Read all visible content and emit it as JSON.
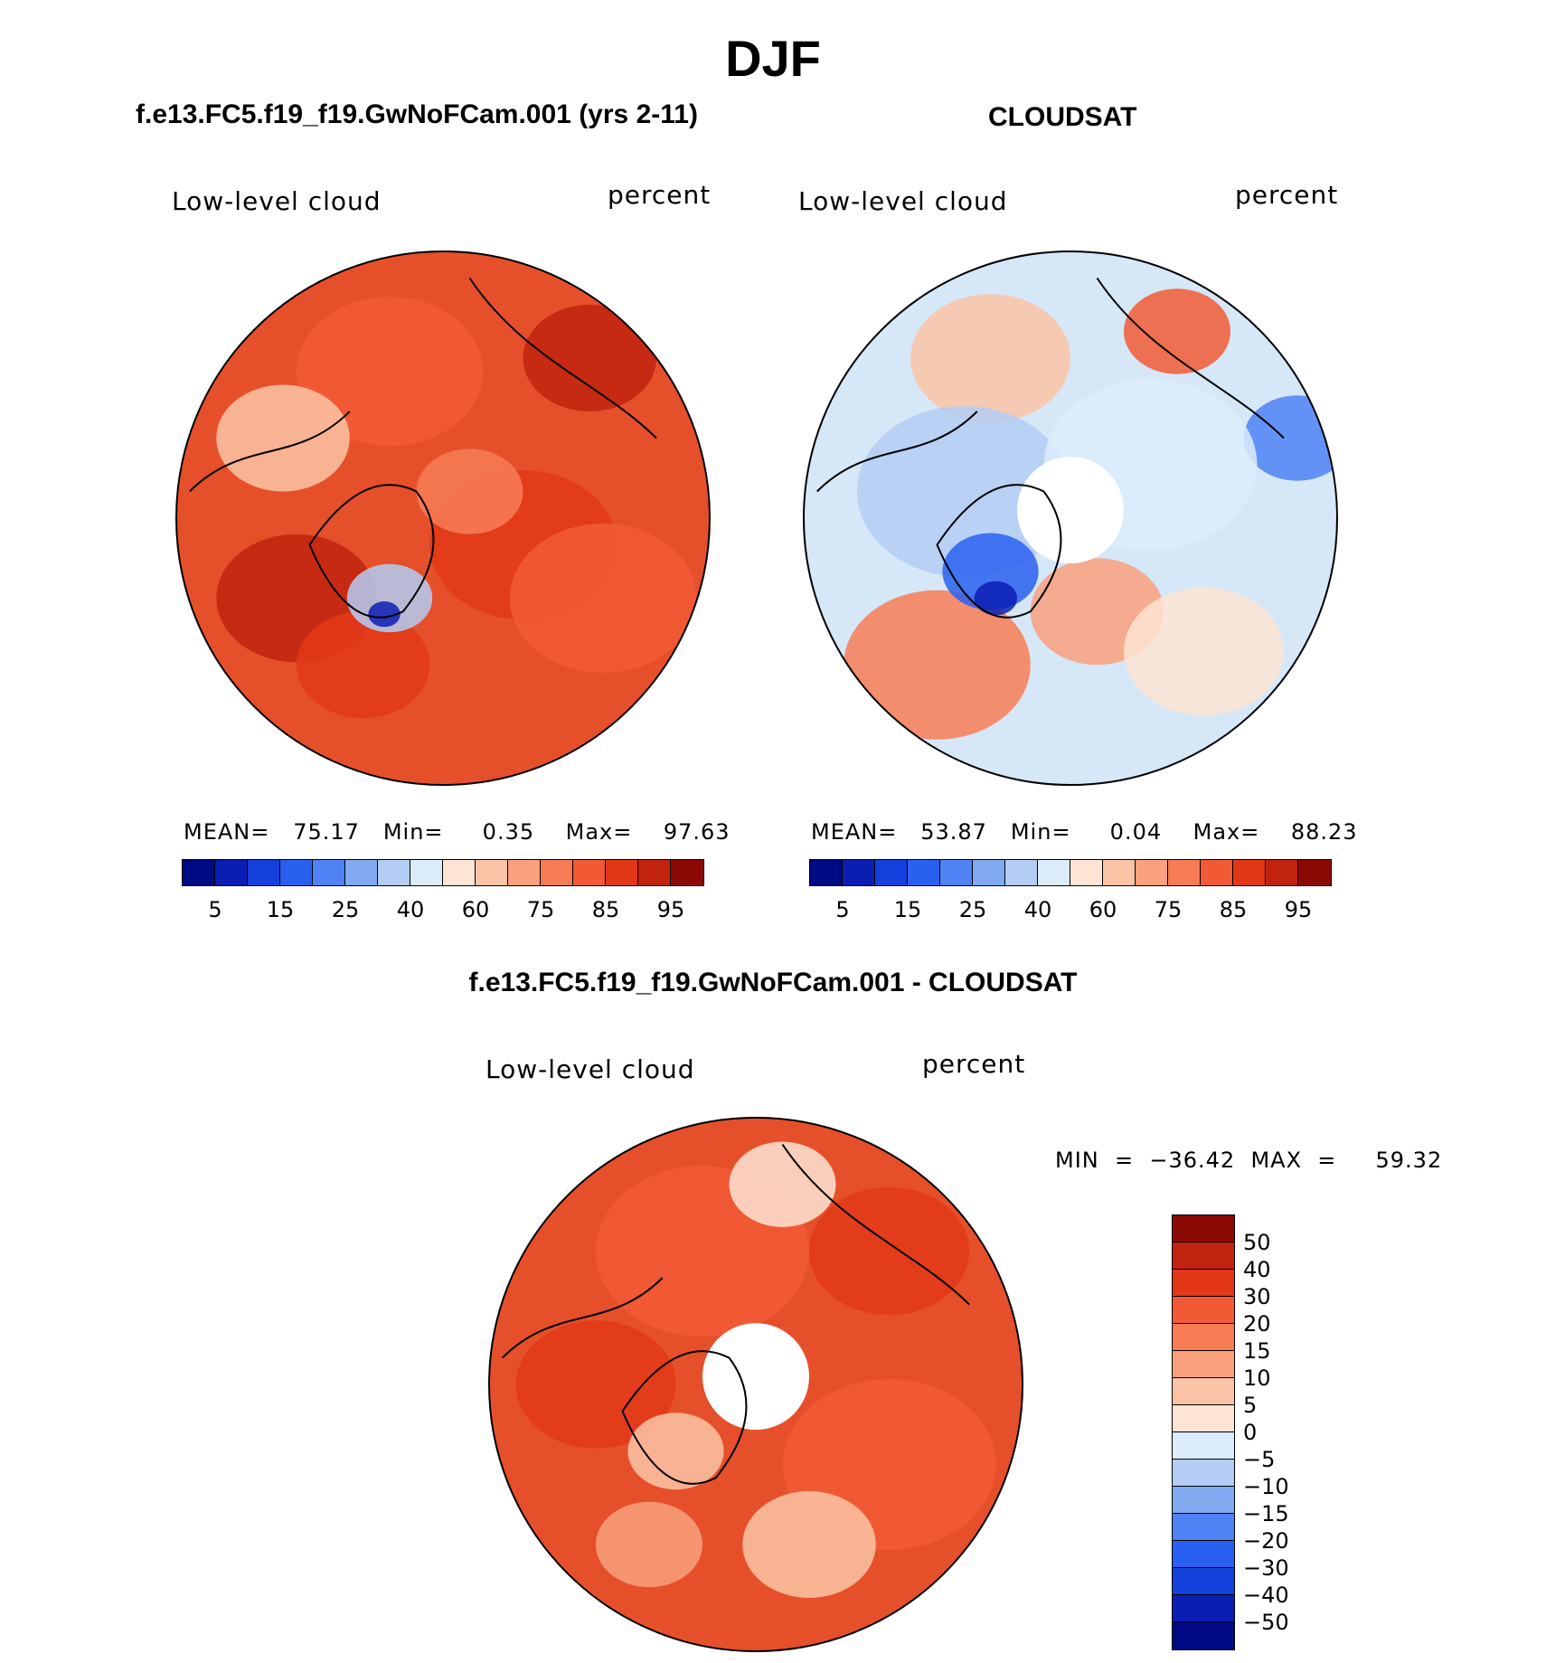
{
  "figure": {
    "season": "DJF",
    "panels": [
      {
        "id": "model",
        "title": "f.e13.FC5.f19_f19.GwNoFCam.001 (yrs 2-11)",
        "left_label": "Low-level cloud",
        "right_label": "percent",
        "stats_text": "MEAN=   75.17   Min=     0.35    Max=    97.63",
        "base_color": "#e5502a",
        "polar_hole": false
      },
      {
        "id": "obs",
        "title": "CLOUDSAT",
        "left_label": "Low-level cloud",
        "right_label": "percent",
        "stats_text": "MEAN=   53.87   Min=     0.04    Max=    88.23",
        "base_color": "#d6e7f7",
        "polar_hole": true
      },
      {
        "id": "diff",
        "title": "f.e13.FC5.f19_f19.GwNoFCam.001 - CLOUDSAT",
        "left_label": "Low-level cloud",
        "right_label": "percent",
        "stats_text": "MIN  =  −36.42  MAX  =     59.32",
        "base_color": "#e5502a",
        "polar_hole": true
      }
    ],
    "colorbar_abs": {
      "colors": [
        "#000a82",
        "#0a1eb4",
        "#1440dc",
        "#2a60f0",
        "#4e82f5",
        "#82aaf0",
        "#b4cdf5",
        "#dcecfa",
        "#fde4d4",
        "#fbc4a6",
        "#f9a07e",
        "#f77c56",
        "#f25a36",
        "#e23818",
        "#c2230f",
        "#8c0a05"
      ],
      "tick_labels": [
        "5",
        "15",
        "25",
        "40",
        "60",
        "75",
        "85",
        "95"
      ]
    },
    "colorbar_diff": {
      "colors": [
        "#000a82",
        "#0a1eb4",
        "#1440dc",
        "#2a60f0",
        "#4e82f5",
        "#82aaf0",
        "#b4cdf5",
        "#dcecfa",
        "#fde4d4",
        "#fbc4a6",
        "#f9a07e",
        "#f77c56",
        "#f25a36",
        "#e23818",
        "#c2230f",
        "#8c0a05"
      ],
      "tick_labels": [
        "50",
        "40",
        "30",
        "20",
        "15",
        "10",
        "5",
        "0",
        "−5",
        "−10",
        "−15",
        "−20",
        "−30",
        "−40",
        "−50"
      ]
    }
  }
}
